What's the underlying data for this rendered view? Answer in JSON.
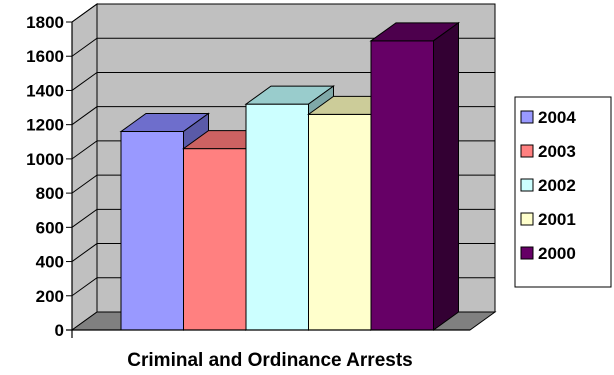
{
  "chart_data": {
    "type": "bar",
    "categories": [
      ""
    ],
    "series": [
      {
        "name": "2004",
        "values": [
          1160
        ],
        "color": "#9999ff",
        "top_color": "#6e6ecc",
        "side_color": "#5a5aa8"
      },
      {
        "name": "2003",
        "values": [
          1060
        ],
        "color": "#ff8080",
        "top_color": "#cc6262",
        "side_color": "#a84f4f"
      },
      {
        "name": "2002",
        "values": [
          1320
        ],
        "color": "#ccffff",
        "top_color": "#99cccc",
        "side_color": "#7fa8a8"
      },
      {
        "name": "2001",
        "values": [
          1260
        ],
        "color": "#ffffcc",
        "top_color": "#cccc99",
        "side_color": "#a8a87f"
      },
      {
        "name": "2000",
        "values": [
          1690
        ],
        "color": "#660066",
        "top_color": "#4d004d",
        "side_color": "#330033"
      }
    ],
    "xlabel": "Criminal and Ordinance Arrests",
    "ylabel": "",
    "ylim": [
      0,
      1800
    ],
    "yticks": [
      "0",
      "200",
      "400",
      "600",
      "800",
      "1000",
      "1200",
      "1400",
      "1600",
      "1800"
    ],
    "grid": true,
    "legend_position": "right",
    "three_d": true,
    "wall_color": "#c0c0c0",
    "floor_color": "#808080"
  }
}
